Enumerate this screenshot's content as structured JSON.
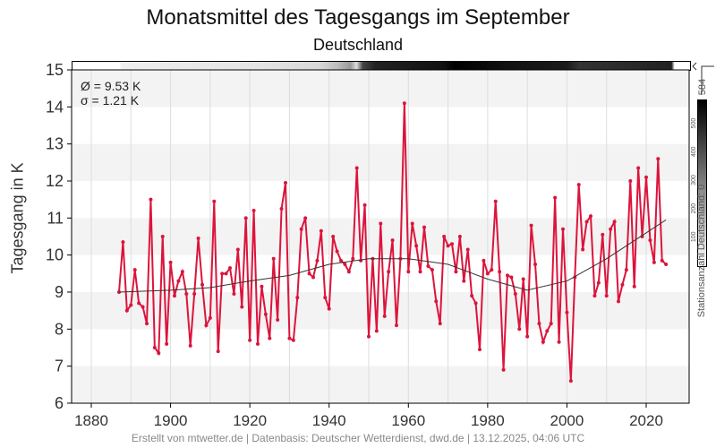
{
  "title": "Monatsmittel des Tagesgangs im September",
  "subtitle": "Deutschland",
  "stats": {
    "mean": "Ø = 9.53 K",
    "sd": "σ = 1.21 K"
  },
  "footer": "Erstellt von mtwetter.de | Datenbasis: Deutscher Wetterdienst, dwd.de | 13.12.2025, 04:06 UTC",
  "station_bar": {
    "label": "Stationsanzahl Deutschland: 0",
    "max_label": "584",
    "ticks": [
      "100",
      "200",
      "300",
      "400",
      "500"
    ]
  },
  "colors": {
    "series": "#dc143c",
    "trend": "#333333",
    "band": "#f3f3f3"
  },
  "chart_data": {
    "type": "line",
    "title": "Monatsmittel des Tagesgangs im September",
    "subtitle": "Deutschland",
    "xlabel": "",
    "ylabel": "Tagesgang in K",
    "xlim": [
      1880,
      2030
    ],
    "ylim": [
      6,
      15
    ],
    "xticks": [
      "1880",
      "1900",
      "1920",
      "1940",
      "1960",
      "1980",
      "2000",
      "2020"
    ],
    "yticks": [
      "6",
      "7",
      "8",
      "9",
      "10",
      "11",
      "12",
      "13",
      "14",
      "15"
    ],
    "start_year": 1887,
    "values": [
      9.0,
      10.35,
      8.5,
      8.65,
      9.6,
      8.7,
      8.6,
      8.15,
      11.5,
      7.5,
      7.35,
      10.5,
      7.6,
      9.8,
      8.9,
      9.3,
      9.55,
      8.95,
      7.55,
      8.95,
      10.45,
      9.2,
      8.1,
      8.3,
      11.45,
      7.4,
      9.5,
      9.5,
      9.65,
      8.95,
      10.15,
      8.6,
      11.0,
      7.7,
      11.2,
      7.6,
      9.15,
      8.4,
      7.75,
      9.9,
      8.25,
      11.25,
      11.95,
      7.75,
      7.7,
      8.85,
      10.7,
      11.0,
      9.5,
      9.4,
      9.85,
      10.65,
      8.85,
      8.55,
      10.5,
      10.1,
      9.85,
      9.75,
      9.55,
      9.9,
      12.35,
      9.85,
      11.35,
      7.8,
      9.9,
      7.95,
      10.85,
      8.35,
      9.55,
      10.4,
      8.1,
      9.9,
      14.1,
      9.55,
      10.85,
      10.25,
      9.55,
      10.75,
      9.7,
      9.6,
      8.75,
      8.15,
      10.5,
      10.25,
      10.3,
      9.55,
      10.5,
      9.3,
      10.15,
      8.9,
      8.7,
      7.45,
      9.85,
      9.5,
      9.6,
      11.45,
      9.55,
      6.9,
      9.45,
      9.4,
      8.95,
      8.0,
      9.35,
      7.8,
      10.8,
      9.75,
      8.15,
      7.65,
      7.95,
      8.15,
      11.55,
      7.65,
      10.7,
      8.45,
      6.6,
      9.4,
      11.9,
      10.15,
      10.9,
      11.05,
      8.9,
      9.25,
      10.55,
      8.9,
      10.7,
      10.9,
      8.75,
      9.2,
      9.6,
      12.0,
      9.15,
      12.35,
      10.5,
      12.1,
      10.4,
      9.8,
      12.6,
      9.85,
      9.75
    ],
    "trend": {
      "years": [
        1887,
        1900,
        1910,
        1920,
        1930,
        1940,
        1950,
        1960,
        1970,
        1980,
        1990,
        2000,
        2010,
        2025
      ],
      "values": [
        9.0,
        9.05,
        9.12,
        9.3,
        9.45,
        9.75,
        9.9,
        9.9,
        9.75,
        9.35,
        9.05,
        9.3,
        9.9,
        10.95
      ]
    },
    "grid": true,
    "legend": "none"
  }
}
